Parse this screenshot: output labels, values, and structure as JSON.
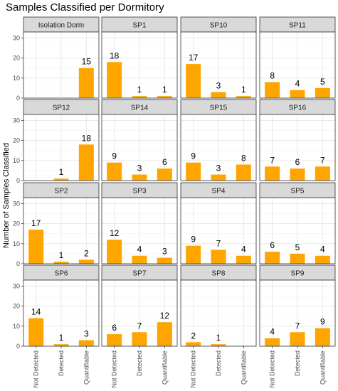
{
  "chart_data": {
    "type": "bar",
    "title": "Samples Classified per Dormitory",
    "xlabel": "",
    "ylabel": "Number of Samples Classified",
    "categories": [
      "Not Detected",
      "Detected",
      "Quantifiable"
    ],
    "ylim": [
      0,
      33
    ],
    "yticks": [
      "0",
      "10",
      "20",
      "30"
    ],
    "bar_color": "#FFA500",
    "strip_fill": "#D9D9D9",
    "grid": true,
    "facets": [
      {
        "name": "Isolation Dorm",
        "values": [
          null,
          null,
          15
        ],
        "labels": [
          "",
          "",
          "15"
        ]
      },
      {
        "name": "SP1",
        "values": [
          18,
          1,
          1
        ],
        "labels": [
          "18",
          "1",
          "1"
        ]
      },
      {
        "name": "SP10",
        "values": [
          17,
          3,
          1
        ],
        "labels": [
          "17",
          "3",
          "1"
        ]
      },
      {
        "name": "SP11",
        "values": [
          8,
          4,
          5
        ],
        "labels": [
          "8",
          "4",
          "5"
        ]
      },
      {
        "name": "SP12",
        "values": [
          null,
          1,
          18
        ],
        "labels": [
          "",
          "1",
          "18"
        ]
      },
      {
        "name": "SP14",
        "values": [
          9,
          3,
          6
        ],
        "labels": [
          "9",
          "3",
          "6"
        ]
      },
      {
        "name": "SP15",
        "values": [
          9,
          3,
          8
        ],
        "labels": [
          "9",
          "3",
          "8"
        ]
      },
      {
        "name": "SP16",
        "values": [
          7,
          6,
          7
        ],
        "labels": [
          "7",
          "6",
          "7"
        ]
      },
      {
        "name": "SP2",
        "values": [
          17,
          1,
          2
        ],
        "labels": [
          "17",
          "1",
          "2"
        ]
      },
      {
        "name": "SP3",
        "values": [
          12,
          4,
          3
        ],
        "labels": [
          "12",
          "4",
          "3"
        ]
      },
      {
        "name": "SP4",
        "values": [
          9,
          7,
          4
        ],
        "labels": [
          "9",
          "7",
          "4"
        ]
      },
      {
        "name": "SP5",
        "values": [
          6,
          5,
          4
        ],
        "labels": [
          "6",
          "5",
          "4"
        ]
      },
      {
        "name": "SP6",
        "values": [
          14,
          1,
          3
        ],
        "labels": [
          "14",
          "1",
          "3"
        ]
      },
      {
        "name": "SP7",
        "values": [
          6,
          7,
          12
        ],
        "labels": [
          "6",
          "7",
          "12"
        ]
      },
      {
        "name": "SP8",
        "values": [
          2,
          1,
          null
        ],
        "labels": [
          "2",
          "1",
          ""
        ]
      },
      {
        "name": "SP9",
        "values": [
          4,
          7,
          9
        ],
        "labels": [
          "4",
          "7",
          "9"
        ]
      }
    ]
  }
}
